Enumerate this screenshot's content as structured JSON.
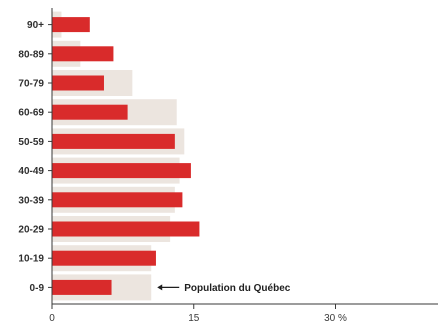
{
  "chart_data": {
    "type": "bar",
    "orientation": "horizontal",
    "categories": [
      "90+",
      "80-89",
      "70-79",
      "60-69",
      "50-59",
      "40-49",
      "30-39",
      "20-29",
      "10-19",
      "0-9"
    ],
    "series": [
      {
        "values": [
          4.0,
          6.5,
          5.5,
          8.0,
          13.0,
          14.7,
          13.8,
          15.6,
          11.0,
          6.3
        ],
        "color": "#d92b2b"
      },
      {
        "name": "Population du Québec",
        "values": [
          1.0,
          3.0,
          8.5,
          13.2,
          14.0,
          13.5,
          13.0,
          12.5,
          10.5,
          10.5
        ],
        "color": "#ece5df"
      }
    ],
    "x_ticks": [
      {
        "value": 0,
        "label": "0"
      },
      {
        "value": 15,
        "label": "15"
      },
      {
        "value": 30,
        "label": "30 %"
      }
    ],
    "xlim": [
      0,
      40
    ],
    "grid": false,
    "annotation": {
      "text": "Population du Québec",
      "target_category": "0-9"
    }
  }
}
